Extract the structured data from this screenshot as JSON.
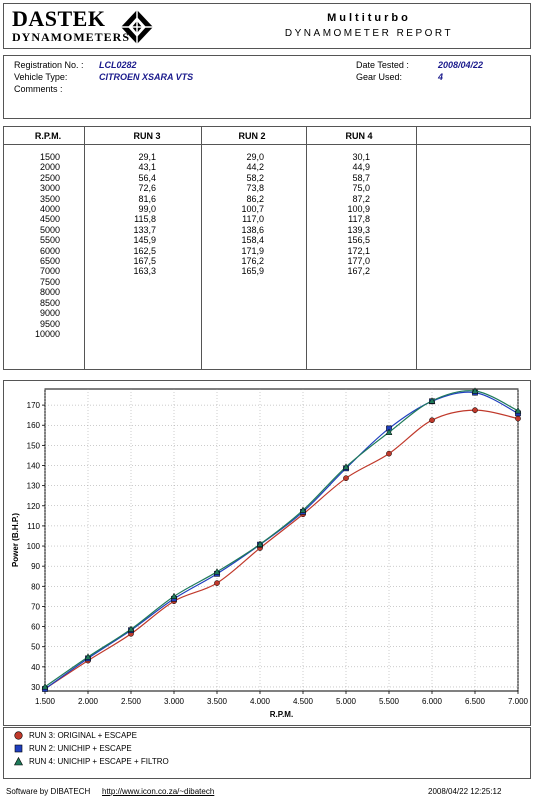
{
  "header": {
    "logo_line1": "DASTEK",
    "logo_line2": "DYNAMOMETERS",
    "title": "Multiturbo",
    "subtitle": "DYNAMOMETER REPORT"
  },
  "info": {
    "reg_label": "Registration No. :",
    "reg_value": "LCL0282",
    "vehicle_label": "Vehicle Type:",
    "vehicle_value": "CITROEN XSARA VTS",
    "comments_label": "Comments :",
    "date_label": "Date Tested :",
    "date_value": "2008/04/22",
    "gear_label": "Gear Used:",
    "gear_value": "4"
  },
  "table": {
    "headers": [
      "R.P.M.",
      "RUN 3",
      "RUN 2",
      "RUN 4"
    ],
    "rpm": [
      "1500",
      "2000",
      "2500",
      "3000",
      "3500",
      "4000",
      "4500",
      "5000",
      "5500",
      "6000",
      "6500",
      "7000",
      "7500",
      "8000",
      "8500",
      "9000",
      "9500",
      "10000"
    ],
    "run3": [
      "29,1",
      "43,1",
      "56,4",
      "72,6",
      "81,6",
      "99,0",
      "115,8",
      "133,7",
      "145,9",
      "162,5",
      "167,5",
      "163,3"
    ],
    "run2": [
      "29,0",
      "44,2",
      "58,2",
      "73,8",
      "86,2",
      "100,7",
      "117,0",
      "138,6",
      "158,4",
      "171,9",
      "176,2",
      "165,9"
    ],
    "run4": [
      "30,1",
      "44,9",
      "58,7",
      "75,0",
      "87,2",
      "100,9",
      "117,8",
      "139,3",
      "156,5",
      "172,1",
      "177,0",
      "167,2"
    ]
  },
  "chart_data": {
    "type": "line",
    "x": [
      1500,
      2000,
      2500,
      3000,
      3500,
      4000,
      4500,
      5000,
      5500,
      6000,
      6500,
      7000
    ],
    "xtick_labels": [
      "1.500",
      "2.000",
      "2.500",
      "3.000",
      "3.500",
      "4.000",
      "4.500",
      "5.000",
      "5.500",
      "6.000",
      "6.500",
      "7.000"
    ],
    "yticks": [
      30,
      40,
      50,
      60,
      70,
      80,
      90,
      100,
      110,
      120,
      130,
      140,
      150,
      160,
      170
    ],
    "xlim": [
      1500,
      7000
    ],
    "ylim": [
      28,
      178
    ],
    "xlabel": "R.P.M.",
    "ylabel": "Power (B.H.P.)",
    "grid": true,
    "series": [
      {
        "name": "RUN 3: ORIGINAL + ESCAPE",
        "color": "#c0392b",
        "marker": "circle",
        "values": [
          29.1,
          43.1,
          56.4,
          72.6,
          81.6,
          99.0,
          115.8,
          133.7,
          145.9,
          162.5,
          167.5,
          163.3
        ]
      },
      {
        "name": "RUN 2: UNICHIP + ESCAPE",
        "color": "#1f3fbf",
        "marker": "square",
        "values": [
          29.0,
          44.2,
          58.2,
          73.8,
          86.2,
          100.7,
          117.0,
          138.6,
          158.4,
          171.9,
          176.2,
          165.9
        ]
      },
      {
        "name": "RUN 4: UNICHIP + ESCAPE + FILTRO",
        "color": "#1f7a5a",
        "marker": "triangle",
        "values": [
          30.1,
          44.9,
          58.7,
          75.0,
          87.2,
          100.9,
          117.8,
          139.3,
          156.5,
          172.1,
          177.0,
          167.2
        ]
      }
    ]
  },
  "legend": [
    {
      "label": "RUN 3: ORIGINAL + ESCAPE",
      "color": "#c0392b",
      "marker": "circle"
    },
    {
      "label": "RUN 2: UNICHIP + ESCAPE",
      "color": "#1f3fbf",
      "marker": "square"
    },
    {
      "label": "RUN 4: UNICHIP + ESCAPE + FILTRO",
      "color": "#1f7a5a",
      "marker": "triangle"
    }
  ],
  "footer": {
    "software": "Software by DIBATECH",
    "url": "http://www.icon.co.za/~dibatech",
    "timestamp": "2008/04/22 12:25:12"
  }
}
